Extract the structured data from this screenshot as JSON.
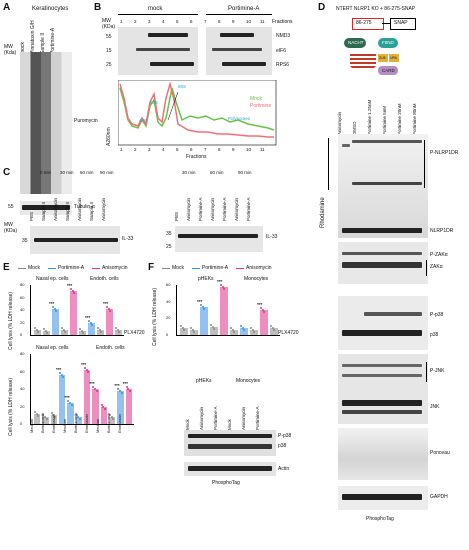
{
  "panelA": {
    "letter": "A",
    "header": "Keratinocytes",
    "mw": "MW (Kda)",
    "lanes": [
      "mock",
      "Pinnatoxin G/H",
      "Sample II",
      "Portimine-A"
    ],
    "labels": [
      "Puromycin",
      "Tubulin-α"
    ],
    "mw_marker": "55"
  },
  "panelB": {
    "letter": "B",
    "groups": [
      "mock",
      "Portimine-A"
    ],
    "mw": "MW (KDa)",
    "fractions_label": "Fractions",
    "fractions": [
      "1",
      "2",
      "3",
      "4",
      "5",
      "6",
      "7",
      "8",
      "9",
      "10",
      "11"
    ],
    "mw_markers": [
      "55",
      "15",
      "25"
    ],
    "proteins": [
      "NMD3",
      "eIF6",
      "RPS6"
    ],
    "peaks": [
      "40S",
      "60S",
      "80S",
      "Polysomes"
    ],
    "legend": [
      "Mock",
      "Portimine"
    ],
    "ylabel": "A260nm",
    "xlabel": "Fractions"
  },
  "panelC": {
    "letter": "C",
    "times": [
      "0 min",
      "30 min",
      "60 min",
      "90 min"
    ],
    "lanes_left": [
      "PBS",
      "Sample II",
      "Anisomycin",
      "Sample II",
      "Anisomycin",
      "Sample II",
      "Anisomycin"
    ],
    "lanes_right": [
      "PBS",
      "Anisomycin",
      "Portimine-A",
      "Anisomycin",
      "Portimine-A",
      "Anisomycin",
      "Portimine-A"
    ],
    "mw": "MW (KDa)",
    "mw_markers": [
      "35",
      "25"
    ],
    "label": "IL-33",
    "times_right": [
      "30 min",
      "60 min",
      "90 min"
    ]
  },
  "panelE": {
    "letter": "E",
    "legend": [
      "Mock",
      "Portimine-A",
      "Anisomycin"
    ],
    "groups_top": [
      "Nasal ep. cells",
      "Endoth. cells"
    ],
    "ylabel": "Cell lysis (% LDH release)",
    "plx": "PLX4720",
    "signs": [
      "-",
      "+",
      "-",
      "+"
    ],
    "groups_bottom": [
      "Nasal ep. cells",
      "Endoth. cells"
    ],
    "bottom_xt": [
      "Medium",
      "Bortezomib",
      "Emricasan",
      "Medium",
      "Bortezomib",
      "Emricasan",
      "Medium",
      "Bortezomib",
      "Emricasan"
    ],
    "sig": "***",
    "yticks_top": [
      "0",
      "20",
      "40",
      "60",
      "80"
    ],
    "yticks_bottom": [
      "0",
      "20",
      "40",
      "60",
      "80"
    ]
  },
  "panelF": {
    "letter": "F",
    "legend": [
      "Mock",
      "Portimine-A",
      "Anisomycin"
    ],
    "groups": [
      "pHEKs",
      "Monocytes"
    ],
    "ylabel": "Cell lysis (% LDH release)",
    "plx": "PLX4720",
    "blot_groups": [
      "pHEKs",
      "Monocytes"
    ],
    "blot_lanes": [
      "Mock",
      "Anisomycin",
      "Portimine-A",
      "Mock",
      "Anisomycin",
      "Portimine-A"
    ],
    "blot_labels": [
      "P-p38",
      "p38",
      "Actin"
    ],
    "footer": "PhosphoTag",
    "sig": "***",
    "yticks": [
      "0",
      "20",
      "40",
      "60"
    ]
  },
  "panelD": {
    "letter": "D",
    "title": "NTERT NLRP1 KO + 86-275-SNAP",
    "construct": [
      "86-275",
      "SNAP"
    ],
    "domains": [
      "NACHT",
      "FIIND",
      "ZU5",
      "UPA",
      "CARD"
    ],
    "lanes": [
      "Anisomycin",
      "DMSO",
      "Portimine 1.25nM",
      "Portimine 5nM",
      "Portimine 20nM",
      "Portimine 80nM"
    ],
    "side_label": "Rhodamine",
    "labels": [
      "P-NLRP1DR",
      "NLRP1DR",
      "P-ZAKα",
      "ZAKα",
      "P-p38",
      "p38",
      "P-JNK",
      "JNK",
      "Ponceau",
      "GAPDH"
    ],
    "footer": "PhosphoTag"
  },
  "colors": {
    "mock": "#888888",
    "portimine": "#3a8fe0",
    "anisomycin": "#e0308a",
    "trace_mock": "#6cc04a",
    "trace_portimine": "#f0707a"
  }
}
